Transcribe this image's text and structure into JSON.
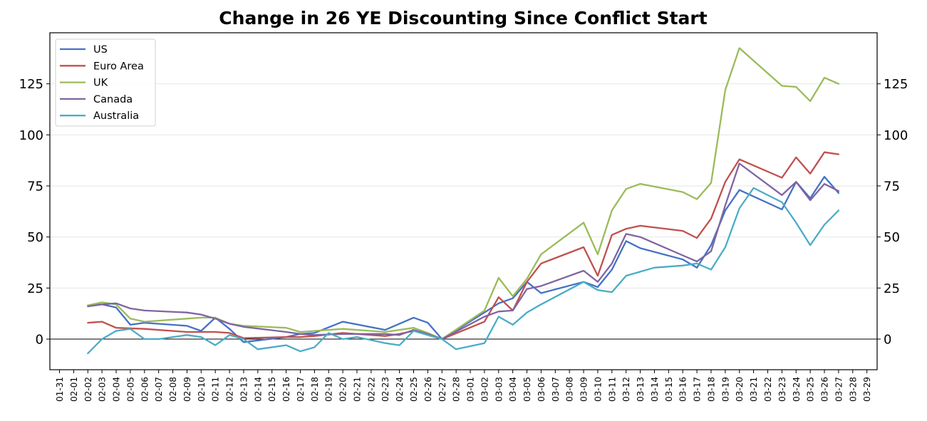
{
  "chart_data": {
    "type": "line",
    "title": "Change in 26 YE Discounting Since Conflict Start",
    "xlabel": "",
    "ylabel": "",
    "ylim": [
      -15,
      150
    ],
    "yticks": [
      0,
      25,
      50,
      75,
      100,
      125
    ],
    "x_tick_labels": [
      "01-31",
      "02-01",
      "02-02",
      "02-03",
      "02-04",
      "02-05",
      "02-06",
      "02-07",
      "02-08",
      "02-09",
      "02-10",
      "02-11",
      "02-12",
      "02-13",
      "02-14",
      "02-15",
      "02-16",
      "02-17",
      "02-18",
      "02-19",
      "02-20",
      "02-21",
      "02-22",
      "02-23",
      "02-24",
      "02-25",
      "02-26",
      "02-27",
      "02-28",
      "03-01",
      "03-02",
      "03-03",
      "03-04",
      "03-05",
      "03-06",
      "03-07",
      "03-08",
      "03-09",
      "03-10",
      "03-11",
      "03-12",
      "03-13",
      "03-14",
      "03-15",
      "03-16",
      "03-17",
      "03-18",
      "03-19",
      "03-20",
      "03-21",
      "03-22",
      "03-23",
      "03-24",
      "03-25",
      "03-26",
      "03-27",
      "03-28",
      "03-29"
    ],
    "grid": "horizontal",
    "zero_line": true,
    "secondary_y_axis": true,
    "legend_position": "top-left",
    "series": [
      {
        "name": "US",
        "color": "#4472c4",
        "points": [
          [
            "02-02",
            16.5
          ],
          [
            "02-03",
            17
          ],
          [
            "02-04",
            15.5
          ],
          [
            "02-05",
            7
          ],
          [
            "02-06",
            8
          ],
          [
            "02-09",
            6.5
          ],
          [
            "02-10",
            4
          ],
          [
            "02-11",
            10.5
          ],
          [
            "02-12",
            5
          ],
          [
            "02-13",
            -1.5
          ],
          [
            "02-16",
            1
          ],
          [
            "02-17",
            2.5
          ],
          [
            "02-18",
            3
          ],
          [
            "02-20",
            8.5
          ],
          [
            "02-23",
            4.5
          ],
          [
            "02-25",
            10.5
          ],
          [
            "02-26",
            8
          ],
          [
            "02-27",
            0
          ],
          [
            "03-02",
            13
          ],
          [
            "03-03",
            17.5
          ],
          [
            "03-04",
            20
          ],
          [
            "03-05",
            28
          ],
          [
            "03-06",
            22.5
          ],
          [
            "03-09",
            28
          ],
          [
            "03-10",
            25.5
          ],
          [
            "03-11",
            34
          ],
          [
            "03-12",
            48
          ],
          [
            "03-13",
            44.5
          ],
          [
            "03-16",
            39
          ],
          [
            "03-17",
            35
          ],
          [
            "03-18",
            46
          ],
          [
            "03-19",
            63
          ],
          [
            "03-20",
            73
          ],
          [
            "03-23",
            63.5
          ],
          [
            "03-24",
            77
          ],
          [
            "03-25",
            69
          ],
          [
            "03-26",
            79.5
          ],
          [
            "03-27",
            71.5
          ]
        ]
      },
      {
        "name": "Euro Area",
        "color": "#c0504d",
        "points": [
          [
            "02-02",
            8
          ],
          [
            "02-03",
            8.5
          ],
          [
            "02-04",
            5.5
          ],
          [
            "02-06",
            5
          ],
          [
            "02-09",
            3.5
          ],
          [
            "02-10",
            3.5
          ],
          [
            "02-11",
            3.5
          ],
          [
            "02-12",
            3
          ],
          [
            "02-13",
            0.5
          ],
          [
            "02-16",
            1
          ],
          [
            "02-17",
            1
          ],
          [
            "02-18",
            1.5
          ],
          [
            "02-20",
            3
          ],
          [
            "02-23",
            1.5
          ],
          [
            "02-24",
            2.5
          ],
          [
            "02-25",
            4
          ],
          [
            "02-26",
            2
          ],
          [
            "02-27",
            0
          ],
          [
            "03-02",
            8.5
          ],
          [
            "03-03",
            20.5
          ],
          [
            "03-04",
            14
          ],
          [
            "03-05",
            28
          ],
          [
            "03-06",
            37
          ],
          [
            "03-09",
            45
          ],
          [
            "03-10",
            31
          ],
          [
            "03-11",
            51
          ],
          [
            "03-12",
            54
          ],
          [
            "03-13",
            55.5
          ],
          [
            "03-16",
            53
          ],
          [
            "03-17",
            49.5
          ],
          [
            "03-18",
            59
          ],
          [
            "03-19",
            77
          ],
          [
            "03-20",
            88
          ],
          [
            "03-23",
            79
          ],
          [
            "03-24",
            89
          ],
          [
            "03-25",
            81
          ],
          [
            "03-26",
            91.5
          ],
          [
            "03-27",
            90.5
          ]
        ]
      },
      {
        "name": "UK",
        "color": "#9bbb59",
        "points": [
          [
            "02-02",
            16.5
          ],
          [
            "02-03",
            18
          ],
          [
            "02-04",
            17
          ],
          [
            "02-05",
            10
          ],
          [
            "02-06",
            8.5
          ],
          [
            "02-09",
            10
          ],
          [
            "02-10",
            10.5
          ],
          [
            "02-11",
            10.5
          ],
          [
            "02-12",
            7.5
          ],
          [
            "02-13",
            6.5
          ],
          [
            "02-16",
            5.5
          ],
          [
            "02-17",
            3.5
          ],
          [
            "02-18",
            4
          ],
          [
            "02-20",
            5
          ],
          [
            "02-23",
            3.5
          ],
          [
            "02-25",
            5.5
          ],
          [
            "02-26",
            3
          ],
          [
            "02-27",
            0
          ],
          [
            "03-02",
            14
          ],
          [
            "03-03",
            30
          ],
          [
            "03-04",
            21
          ],
          [
            "03-05",
            29.5
          ],
          [
            "03-06",
            41.5
          ],
          [
            "03-09",
            57
          ],
          [
            "03-10",
            41.5
          ],
          [
            "03-11",
            63
          ],
          [
            "03-12",
            73.5
          ],
          [
            "03-13",
            76
          ],
          [
            "03-16",
            72
          ],
          [
            "03-17",
            68.5
          ],
          [
            "03-18",
            76.5
          ],
          [
            "03-19",
            122
          ],
          [
            "03-20",
            142.5
          ],
          [
            "03-23",
            124
          ],
          [
            "03-24",
            123.5
          ],
          [
            "03-25",
            116.5
          ],
          [
            "03-26",
            128
          ],
          [
            "03-27",
            125
          ]
        ]
      },
      {
        "name": "Canada",
        "color": "#8064a2",
        "points": [
          [
            "02-02",
            16
          ],
          [
            "02-03",
            17
          ],
          [
            "02-04",
            17.5
          ],
          [
            "02-05",
            15
          ],
          [
            "02-06",
            14
          ],
          [
            "02-09",
            13
          ],
          [
            "02-10",
            12
          ],
          [
            "02-11",
            10
          ],
          [
            "02-12",
            7.5
          ],
          [
            "02-13",
            6
          ],
          [
            "02-16",
            3.5
          ],
          [
            "02-17",
            2.5
          ],
          [
            "02-18",
            2
          ],
          [
            "02-20",
            2.5
          ],
          [
            "02-23",
            2.5
          ],
          [
            "02-24",
            2
          ],
          [
            "02-25",
            4.5
          ],
          [
            "02-26",
            2.5
          ],
          [
            "02-27",
            0
          ],
          [
            "03-02",
            11
          ],
          [
            "03-03",
            13.5
          ],
          [
            "03-04",
            14
          ],
          [
            "03-05",
            24.5
          ],
          [
            "03-06",
            26
          ],
          [
            "03-09",
            33.5
          ],
          [
            "03-10",
            28
          ],
          [
            "03-11",
            37
          ],
          [
            "03-12",
            51.5
          ],
          [
            "03-13",
            50
          ],
          [
            "03-16",
            41
          ],
          [
            "03-17",
            38
          ],
          [
            "03-18",
            43
          ],
          [
            "03-19",
            65.5
          ],
          [
            "03-20",
            86
          ],
          [
            "03-23",
            70.5
          ],
          [
            "03-24",
            77
          ],
          [
            "03-25",
            68
          ],
          [
            "03-26",
            76
          ],
          [
            "03-27",
            72.5
          ]
        ]
      },
      {
        "name": "Australia",
        "color": "#4bacc6",
        "points": [
          [
            "02-02",
            -7
          ],
          [
            "02-03",
            0
          ],
          [
            "02-04",
            4
          ],
          [
            "02-05",
            5
          ],
          [
            "02-06",
            0
          ],
          [
            "02-07",
            0
          ],
          [
            "02-09",
            2
          ],
          [
            "02-10",
            1
          ],
          [
            "02-11",
            -3
          ],
          [
            "02-12",
            2
          ],
          [
            "02-13",
            0
          ],
          [
            "02-14",
            -5
          ],
          [
            "02-16",
            -3
          ],
          [
            "02-17",
            -6
          ],
          [
            "02-18",
            -4
          ],
          [
            "02-19",
            3
          ],
          [
            "02-20",
            0
          ],
          [
            "02-21",
            1
          ],
          [
            "02-23",
            -2
          ],
          [
            "02-24",
            -3
          ],
          [
            "02-25",
            4
          ],
          [
            "02-26",
            2
          ],
          [
            "02-27",
            0
          ],
          [
            "02-28",
            -5
          ],
          [
            "03-02",
            -2
          ],
          [
            "03-03",
            11
          ],
          [
            "03-04",
            7
          ],
          [
            "03-05",
            13
          ],
          [
            "03-06",
            17
          ],
          [
            "03-09",
            28
          ],
          [
            "03-10",
            24
          ],
          [
            "03-11",
            23
          ],
          [
            "03-12",
            31
          ],
          [
            "03-13",
            33
          ],
          [
            "03-14",
            35
          ],
          [
            "03-16",
            36
          ],
          [
            "03-17",
            37
          ],
          [
            "03-18",
            34
          ],
          [
            "03-19",
            45
          ],
          [
            "03-20",
            64
          ],
          [
            "03-21",
            74
          ],
          [
            "03-23",
            67
          ],
          [
            "03-24",
            57
          ],
          [
            "03-25",
            46
          ],
          [
            "03-26",
            56
          ],
          [
            "03-27",
            63
          ]
        ]
      }
    ]
  }
}
